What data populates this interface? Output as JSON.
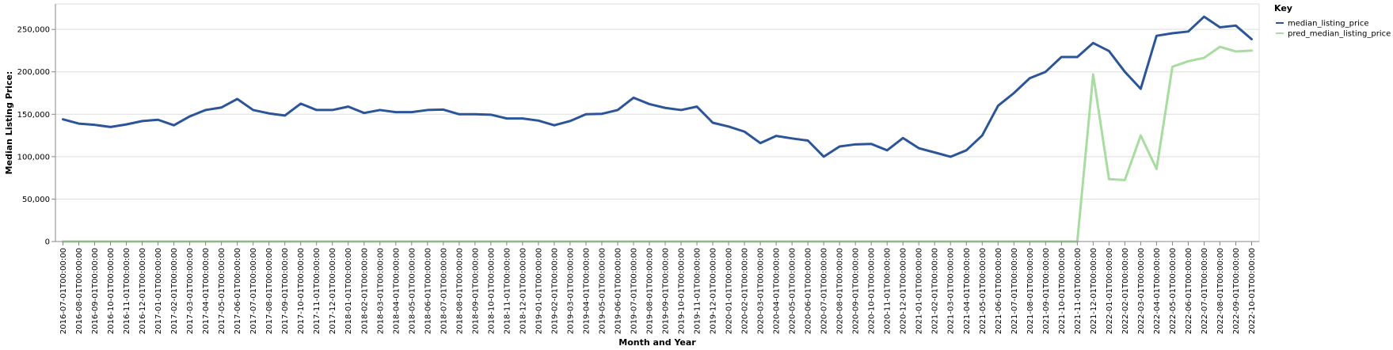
{
  "chart_data": {
    "type": "line",
    "xlabel": "Month and Year",
    "ylabel": "Median Listing Price:",
    "ylim": [
      0,
      280000
    ],
    "yticks": [
      0,
      50000,
      100000,
      150000,
      200000,
      250000
    ],
    "ytick_labels": [
      "0",
      "50,000",
      "100,000",
      "150,000",
      "200,000",
      "250,000"
    ],
    "grid": true,
    "legend": {
      "title": "Key",
      "placement": "top-right"
    },
    "x": [
      "2016-07-01T00:00:00",
      "2016-08-01T00:00:00",
      "2016-09-01T00:00:00",
      "2016-10-01T00:00:00",
      "2016-11-01T00:00:00",
      "2016-12-01T00:00:00",
      "2017-01-01T00:00:00",
      "2017-02-01T00:00:00",
      "2017-03-01T00:00:00",
      "2017-04-01T00:00:00",
      "2017-05-01T00:00:00",
      "2017-06-01T00:00:00",
      "2017-07-01T00:00:00",
      "2017-08-01T00:00:00",
      "2017-09-01T00:00:00",
      "2017-10-01T00:00:00",
      "2017-11-01T00:00:00",
      "2017-12-01T00:00:00",
      "2018-01-01T00:00:00",
      "2018-02-01T00:00:00",
      "2018-03-01T00:00:00",
      "2018-04-01T00:00:00",
      "2018-05-01T00:00:00",
      "2018-06-01T00:00:00",
      "2018-07-01T00:00:00",
      "2018-08-01T00:00:00",
      "2018-09-01T00:00:00",
      "2018-10-01T00:00:00",
      "2018-11-01T00:00:00",
      "2018-12-01T00:00:00",
      "2019-01-01T00:00:00",
      "2019-02-01T00:00:00",
      "2019-03-01T00:00:00",
      "2019-04-01T00:00:00",
      "2019-05-01T00:00:00",
      "2019-06-01T00:00:00",
      "2019-07-01T00:00:00",
      "2019-08-01T00:00:00",
      "2019-09-01T00:00:00",
      "2019-10-01T00:00:00",
      "2019-11-01T00:00:00",
      "2019-12-01T00:00:00",
      "2020-01-01T00:00:00",
      "2020-02-01T00:00:00",
      "2020-03-01T00:00:00",
      "2020-04-01T00:00:00",
      "2020-05-01T00:00:00",
      "2020-06-01T00:00:00",
      "2020-07-01T00:00:00",
      "2020-08-01T00:00:00",
      "2020-09-01T00:00:00",
      "2020-10-01T00:00:00",
      "2020-11-01T00:00:00",
      "2020-12-01T00:00:00",
      "2021-01-01T00:00:00",
      "2021-02-01T00:00:00",
      "2021-03-01T00:00:00",
      "2021-04-01T00:00:00",
      "2021-05-01T00:00:00",
      "2021-06-01T00:00:00",
      "2021-07-01T00:00:00",
      "2021-08-01T00:00:00",
      "2021-09-01T00:00:00",
      "2021-10-01T00:00:00",
      "2021-11-01T00:00:00",
      "2021-12-01T00:00:00",
      "2022-01-01T00:00:00",
      "2022-02-01T00:00:00",
      "2022-03-01T00:00:00",
      "2022-04-01T00:00:00",
      "2022-05-01T00:00:00",
      "2022-06-01T00:00:00",
      "2022-07-01T00:00:00",
      "2022-08-01T00:00:00",
      "2022-09-01T00:00:00",
      "2022-10-01T00:00:00"
    ],
    "series": [
      {
        "name": "median_listing_price",
        "color": "#2c5598",
        "values": [
          144000,
          139000,
          137500,
          135000,
          138000,
          142000,
          143500,
          137000,
          147500,
          155000,
          158000,
          168000,
          155000,
          151000,
          148500,
          162500,
          155000,
          155000,
          159000,
          151500,
          155000,
          152500,
          152500,
          155000,
          155500,
          150000,
          150000,
          149500,
          145000,
          145000,
          142500,
          137000,
          142000,
          150000,
          150500,
          155000,
          169500,
          162000,
          157500,
          155000,
          159000,
          140000,
          135500,
          129500,
          116000,
          124500,
          121500,
          119000,
          100000,
          112000,
          114500,
          115000,
          107500,
          122000,
          110000,
          105000,
          99900,
          107500,
          125000,
          160000,
          175000,
          192500,
          200000,
          217500,
          217500,
          234000,
          224500,
          200000,
          180000,
          242500,
          245500,
          247500,
          265000,
          252500,
          254500,
          238500
        ]
      },
      {
        "name": "pred_median_listing_price",
        "color": "#a8dca0",
        "values": [
          0,
          0,
          0,
          0,
          0,
          0,
          0,
          0,
          0,
          0,
          0,
          0,
          0,
          0,
          0,
          0,
          0,
          0,
          0,
          0,
          0,
          0,
          0,
          0,
          0,
          0,
          0,
          0,
          0,
          0,
          0,
          0,
          0,
          0,
          0,
          0,
          0,
          0,
          0,
          0,
          0,
          0,
          0,
          0,
          0,
          0,
          0,
          0,
          0,
          0,
          0,
          0,
          0,
          0,
          0,
          0,
          0,
          0,
          0,
          0,
          0,
          0,
          0,
          0,
          0,
          197000,
          73500,
          72500,
          125000,
          85500,
          206000,
          212500,
          216500,
          229500,
          224000,
          225000
        ]
      }
    ]
  }
}
